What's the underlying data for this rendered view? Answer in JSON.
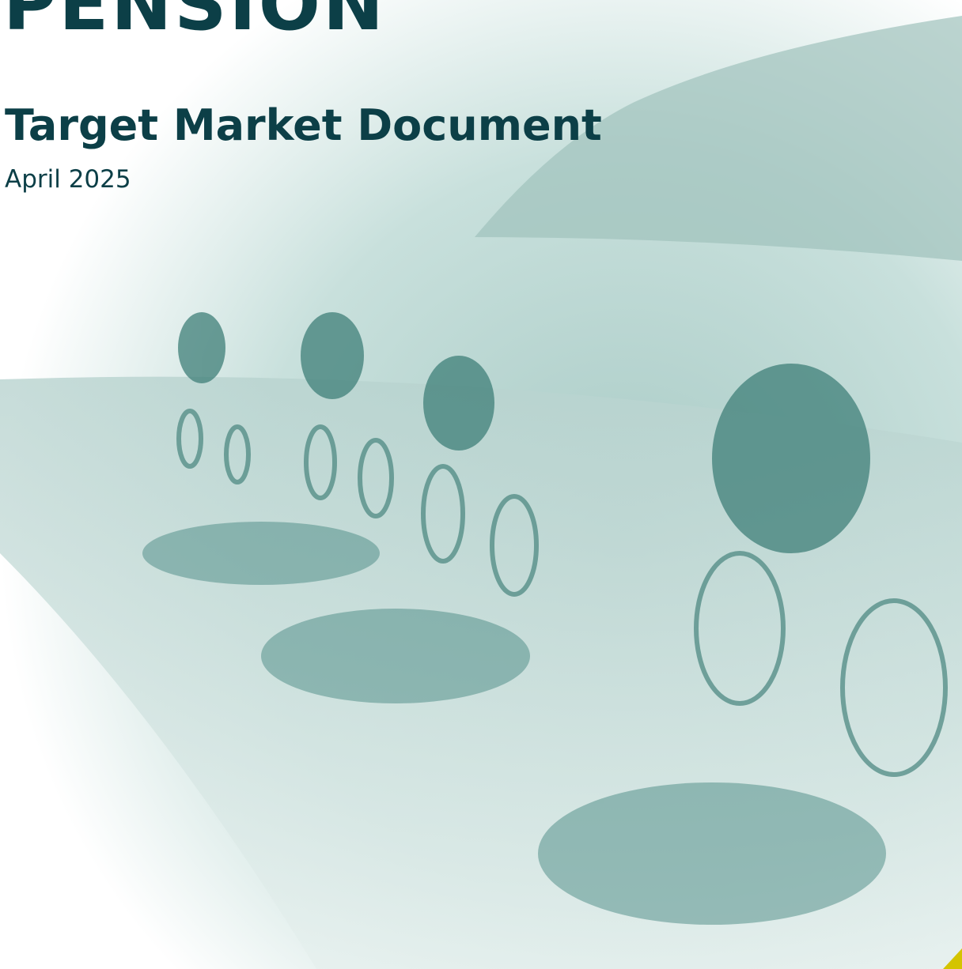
{
  "header": {
    "title": "PENSION",
    "subtitle": "Target Market Document",
    "date": "April 2025"
  }
}
